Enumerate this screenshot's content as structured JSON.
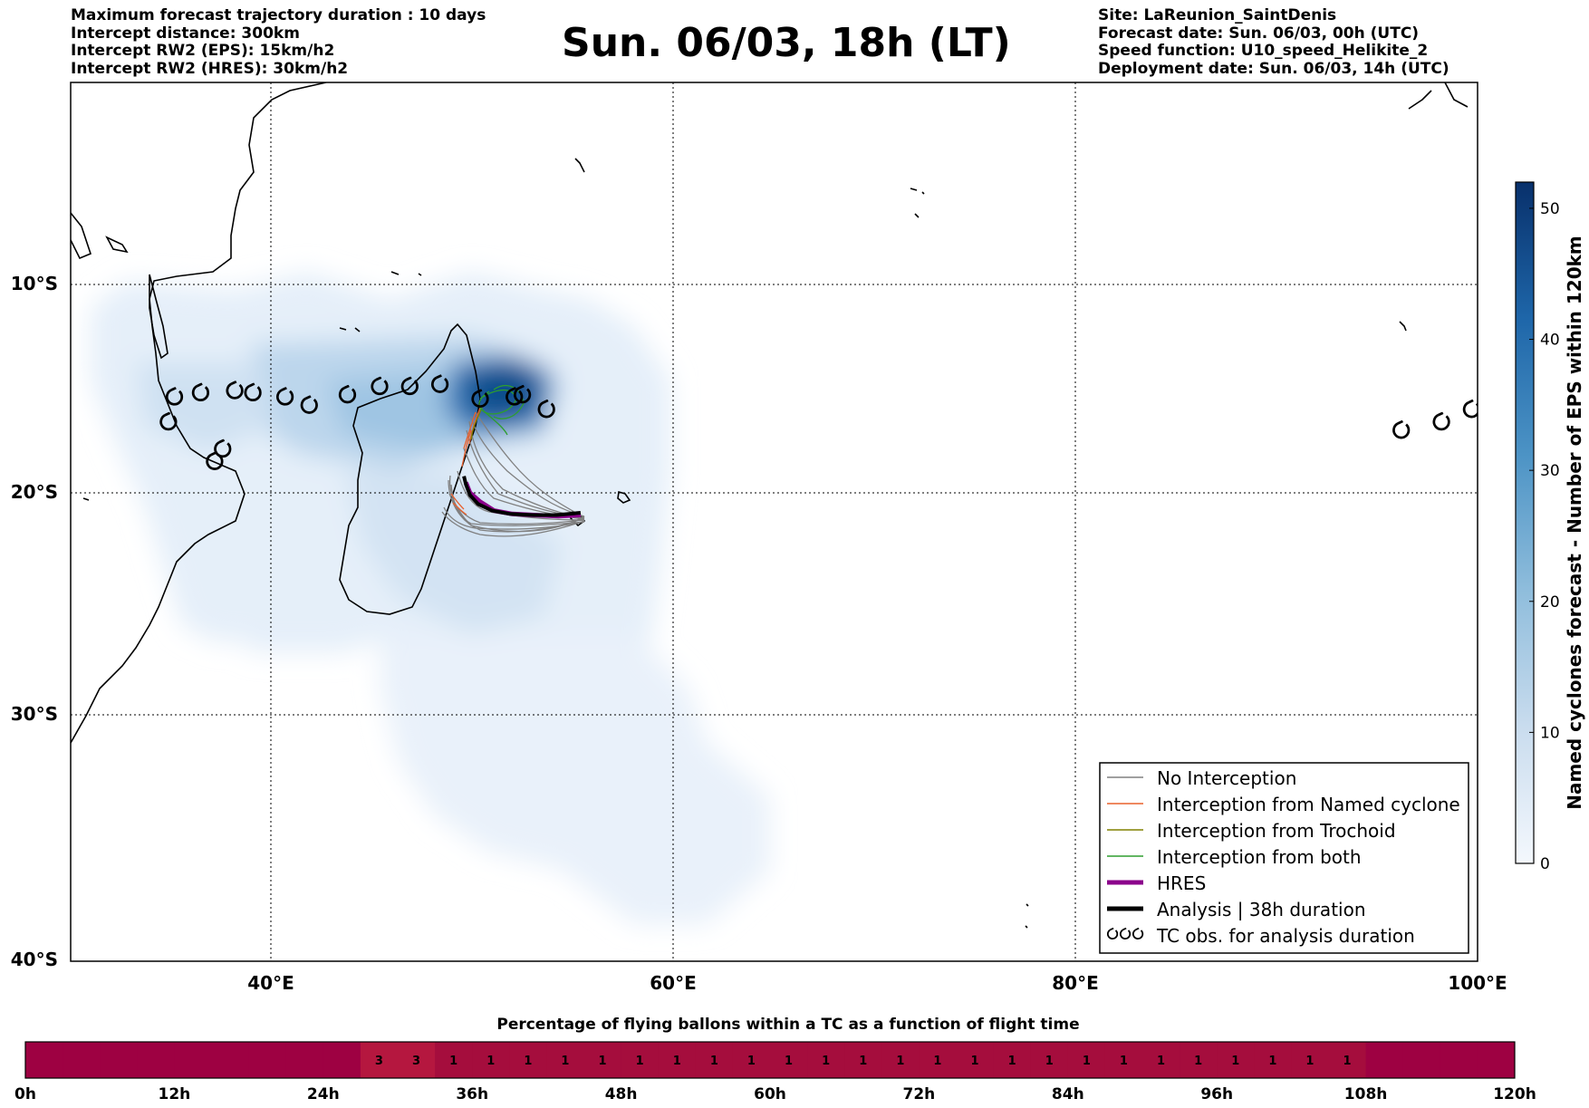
{
  "header": {
    "left": [
      "Maximum forecast trajectory duration : 10 days",
      "Intercept distance: 300km",
      "Intercept RW2 (EPS):  15km/h2",
      "Intercept RW2 (HRES): 30km/h2"
    ],
    "title": "Sun. 06/03, 18h (LT)",
    "right": [
      "Site: LaReunion_SaintDenis",
      "Forecast date: Sun. 06/03, 00h (UTC)",
      "Speed function: U10_speed_Helikite_2",
      "Deployment date: Sun. 06/03, 14h (UTC)"
    ]
  },
  "chart_data": [
    {
      "type": "map",
      "x_ticks": [
        "40°E",
        "60°E",
        "80°E",
        "100°E"
      ],
      "y_ticks": [
        "10°S",
        "20°S",
        "30°S",
        "40°S"
      ],
      "lon_range": [
        30,
        100
      ],
      "lat_range": [
        -40,
        -4
      ],
      "grid": true,
      "legend_position": "bottom-right",
      "legend": [
        {
          "label": "No Interception",
          "color": "#808080",
          "style": "thin"
        },
        {
          "label": "Interception from Named cyclone",
          "color": "#e8602c",
          "style": "thin"
        },
        {
          "label": "Interception from Trochoid",
          "color": "#808000",
          "style": "thin"
        },
        {
          "label": "Interception from both",
          "color": "#2e9e2e",
          "style": "thin"
        },
        {
          "label": "HRES",
          "color": "#8b008b",
          "style": "thick"
        },
        {
          "label": "Analysis | 38h duration",
          "color": "#000000",
          "style": "thick"
        },
        {
          "label": "TC obs. for analysis duration",
          "color": "#000000",
          "style": "cyclone-symbol"
        }
      ],
      "tc_observations": [
        {
          "lon": 34.9,
          "lat": -16.6
        },
        {
          "lon": 35.2,
          "lat": -15.4
        },
        {
          "lon": 36.5,
          "lat": -15.2
        },
        {
          "lon": 38.2,
          "lat": -15.1
        },
        {
          "lon": 39.1,
          "lat": -15.2
        },
        {
          "lon": 37.2,
          "lat": -18.5
        },
        {
          "lon": 37.6,
          "lat": -17.9
        },
        {
          "lon": 40.7,
          "lat": -15.4
        },
        {
          "lon": 41.9,
          "lat": -15.8
        },
        {
          "lon": 43.8,
          "lat": -15.3
        },
        {
          "lon": 45.4,
          "lat": -14.9
        },
        {
          "lon": 46.9,
          "lat": -14.9
        },
        {
          "lon": 48.4,
          "lat": -14.8
        },
        {
          "lon": 50.4,
          "lat": -15.5
        },
        {
          "lon": 52.1,
          "lat": -15.4
        },
        {
          "lon": 52.5,
          "lat": -15.3
        },
        {
          "lon": 53.7,
          "lat": -16.0
        },
        {
          "lon": 96.2,
          "lat": -17.0
        },
        {
          "lon": 98.2,
          "lat": -16.6
        },
        {
          "lon": 99.7,
          "lat": -16.0
        }
      ],
      "analysis_track": {
        "lon": [
          55.4,
          54.2,
          53.0,
          51.9,
          51.0,
          50.3,
          49.9,
          49.7,
          49.6
        ],
        "lat": [
          -20.9,
          -21.0,
          -21.0,
          -20.95,
          -20.8,
          -20.5,
          -20.1,
          -19.6,
          -19.2
        ]
      },
      "hres_track": {
        "lon": [
          55.4,
          54.3,
          53.1,
          52.0,
          51.1,
          50.4,
          49.9,
          49.7
        ],
        "lat": [
          -21.0,
          -21.05,
          -21.0,
          -20.95,
          -20.8,
          -20.4,
          -20.0,
          -19.5
        ]
      }
    },
    {
      "type": "heatmap",
      "colorbar": {
        "label": "Named cyclones forecast - Number of EPS within 120km",
        "ticks": [
          "0",
          "10",
          "20",
          "30",
          "40",
          "50"
        ],
        "range": [
          0,
          52
        ]
      }
    },
    {
      "type": "bar",
      "title": "Percentage of flying ballons within a TC as a function of flight time",
      "x_ticks": [
        "0h",
        "12h",
        "24h",
        "36h",
        "48h",
        "60h",
        "72h",
        "84h",
        "96h",
        "108h",
        "120h"
      ],
      "x_range": [
        0,
        120
      ],
      "bin_hours": 3,
      "values": [
        0,
        0,
        0,
        0,
        0,
        0,
        0,
        0,
        0,
        3,
        3,
        1,
        1,
        1,
        1,
        1,
        1,
        1,
        1,
        1,
        1,
        1,
        1,
        1,
        1,
        1,
        1,
        1,
        1,
        1,
        1,
        1,
        1,
        1,
        1,
        1,
        0,
        0,
        0,
        0
      ],
      "labels": [
        "",
        "",
        "",
        "",
        "",
        "",
        "",
        "",
        "",
        "3",
        "3",
        "1",
        "1",
        "1",
        "1",
        "1",
        "1",
        "1",
        "1",
        "1",
        "1",
        "1",
        "1",
        "1",
        "1",
        "1",
        "1",
        "1",
        "1",
        "1",
        "1",
        "1",
        "1",
        "1",
        "1",
        "1",
        "",
        "",
        "",
        ""
      ]
    }
  ]
}
